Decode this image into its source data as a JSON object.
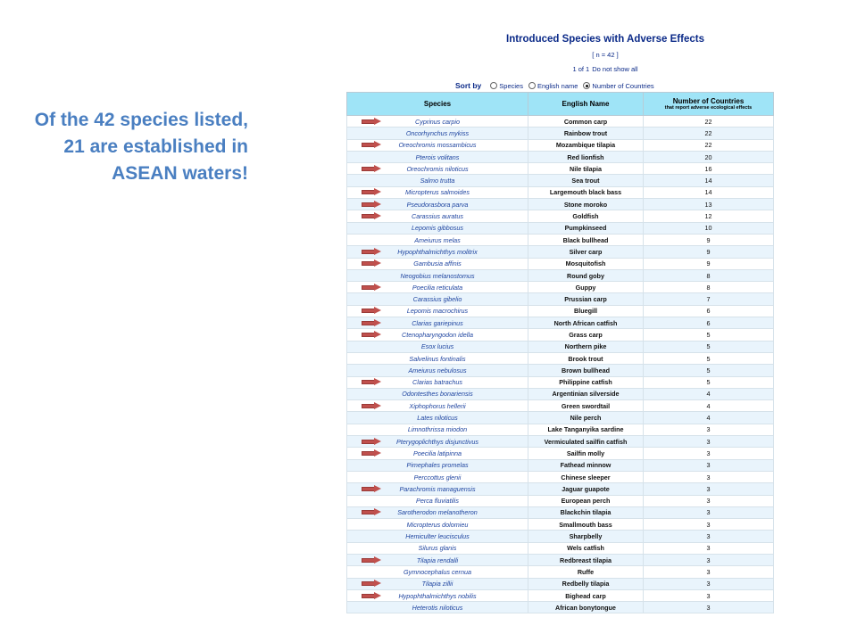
{
  "callout": {
    "text": "Of the 42 species listed, 21 are established in ASEAN waters!"
  },
  "panel": {
    "title": "Introduced Species with Adverse Effects",
    "count": "[ n = 42 ]",
    "paging": "1 of 1",
    "paging_link": "Do not show all"
  },
  "sort": {
    "label": "Sort by",
    "options": [
      "Species",
      "English name",
      "Number of Countries"
    ],
    "selected": "Number of Countries"
  },
  "table": {
    "headers": {
      "species": "Species",
      "english": "English Name",
      "countries": "Number of Countries",
      "countries_sub": "that report adverse ecological effects"
    },
    "rows": [
      {
        "species": "Cyprinus carpio",
        "english": "Common carp",
        "countries": "22",
        "established": true
      },
      {
        "species": "Oncorhynchus mykiss",
        "english": "Rainbow trout",
        "countries": "22",
        "established": false
      },
      {
        "species": "Oreochromis mossambicus",
        "english": "Mozambique tilapia",
        "countries": "22",
        "established": true
      },
      {
        "species": "Pterois volitans",
        "english": "Red lionfish",
        "countries": "20",
        "established": false
      },
      {
        "species": "Oreochromis niloticus",
        "english": "Nile tilapia",
        "countries": "16",
        "established": true
      },
      {
        "species": "Salmo trutta",
        "english": "Sea trout",
        "countries": "14",
        "established": false
      },
      {
        "species": "Micropterus salmoides",
        "english": "Largemouth black bass",
        "countries": "14",
        "established": true
      },
      {
        "species": "Pseudorasbora parva",
        "english": "Stone moroko",
        "countries": "13",
        "established": true
      },
      {
        "species": "Carassius auratus",
        "english": "Goldfish",
        "countries": "12",
        "established": true
      },
      {
        "species": "Lepomis gibbosus",
        "english": "Pumpkinseed",
        "countries": "10",
        "established": false
      },
      {
        "species": "Ameiurus melas",
        "english": "Black bullhead",
        "countries": "9",
        "established": false
      },
      {
        "species": "Hypophthalmichthys molitrix",
        "english": "Silver carp",
        "countries": "9",
        "established": true
      },
      {
        "species": "Gambusia affinis",
        "english": "Mosquitofish",
        "countries": "9",
        "established": true
      },
      {
        "species": "Neogobius melanostomus",
        "english": "Round goby",
        "countries": "8",
        "established": false
      },
      {
        "species": "Poecilia reticulata",
        "english": "Guppy",
        "countries": "8",
        "established": true
      },
      {
        "species": "Carassius gibelio",
        "english": "Prussian carp",
        "countries": "7",
        "established": false
      },
      {
        "species": "Lepomis macrochirus",
        "english": "Bluegill",
        "countries": "6",
        "established": true
      },
      {
        "species": "Clarias gariepinus",
        "english": "North African catfish",
        "countries": "6",
        "established": true
      },
      {
        "species": "Ctenopharyngodon idella",
        "english": "Grass carp",
        "countries": "5",
        "established": true
      },
      {
        "species": "Esox lucius",
        "english": "Northern pike",
        "countries": "5",
        "established": false
      },
      {
        "species": "Salvelinus fontinalis",
        "english": "Brook trout",
        "countries": "5",
        "established": false
      },
      {
        "species": "Ameiurus nebulosus",
        "english": "Brown bullhead",
        "countries": "5",
        "established": false
      },
      {
        "species": "Clarias batrachus",
        "english": "Philippine catfish",
        "countries": "5",
        "established": true
      },
      {
        "species": "Odontesthes bonariensis",
        "english": "Argentinian silverside",
        "countries": "4",
        "established": false
      },
      {
        "species": "Xiphophorus hellerii",
        "english": "Green swordtail",
        "countries": "4",
        "established": true
      },
      {
        "species": "Lates niloticus",
        "english": "Nile perch",
        "countries": "4",
        "established": false
      },
      {
        "species": "Limnothrissa miodon",
        "english": "Lake Tanganyika sardine",
        "countries": "3",
        "established": false
      },
      {
        "species": "Pterygoplichthys disjunctivus",
        "english": "Vermiculated sailfin catfish",
        "countries": "3",
        "established": true
      },
      {
        "species": "Poecilia latipinna",
        "english": "Sailfin molly",
        "countries": "3",
        "established": true
      },
      {
        "species": "Pimephales promelas",
        "english": "Fathead minnow",
        "countries": "3",
        "established": false
      },
      {
        "species": "Perccottus glenii",
        "english": "Chinese sleeper",
        "countries": "3",
        "established": false
      },
      {
        "species": "Parachromis managuensis",
        "english": "Jaguar guapote",
        "countries": "3",
        "established": true
      },
      {
        "species": "Perca fluviatilis",
        "english": "European perch",
        "countries": "3",
        "established": false
      },
      {
        "species": "Sarotherodon melanotheron",
        "english": "Blackchin tilapia",
        "countries": "3",
        "established": true
      },
      {
        "species": "Micropterus dolomieu",
        "english": "Smallmouth bass",
        "countries": "3",
        "established": false
      },
      {
        "species": "Hemiculter leucisculus",
        "english": "Sharpbelly",
        "countries": "3",
        "established": false
      },
      {
        "species": "Silurus glanis",
        "english": "Wels catfish",
        "countries": "3",
        "established": false
      },
      {
        "species": "Tilapia rendalli",
        "english": "Redbreast tilapia",
        "countries": "3",
        "established": true
      },
      {
        "species": "Gymnocephalus cernua",
        "english": "Ruffe",
        "countries": "3",
        "established": false
      },
      {
        "species": "Tilapia zillii",
        "english": "Redbelly tilapia",
        "countries": "3",
        "established": true
      },
      {
        "species": "Hypophthalmichthys nobilis",
        "english": "Bighead carp",
        "countries": "3",
        "established": true
      },
      {
        "species": "Heterotis niloticus",
        "english": "African bonytongue",
        "countries": "3",
        "established": false
      }
    ]
  },
  "colors": {
    "header_bg": "#9fe4f7",
    "alt_row_bg": "#e9f4fc",
    "link_blue": "#1f45a0",
    "callout_blue": "#4a7fc1",
    "arrow_red": "#c0504d"
  },
  "icons": {
    "marker": "arrow-right-icon"
  }
}
